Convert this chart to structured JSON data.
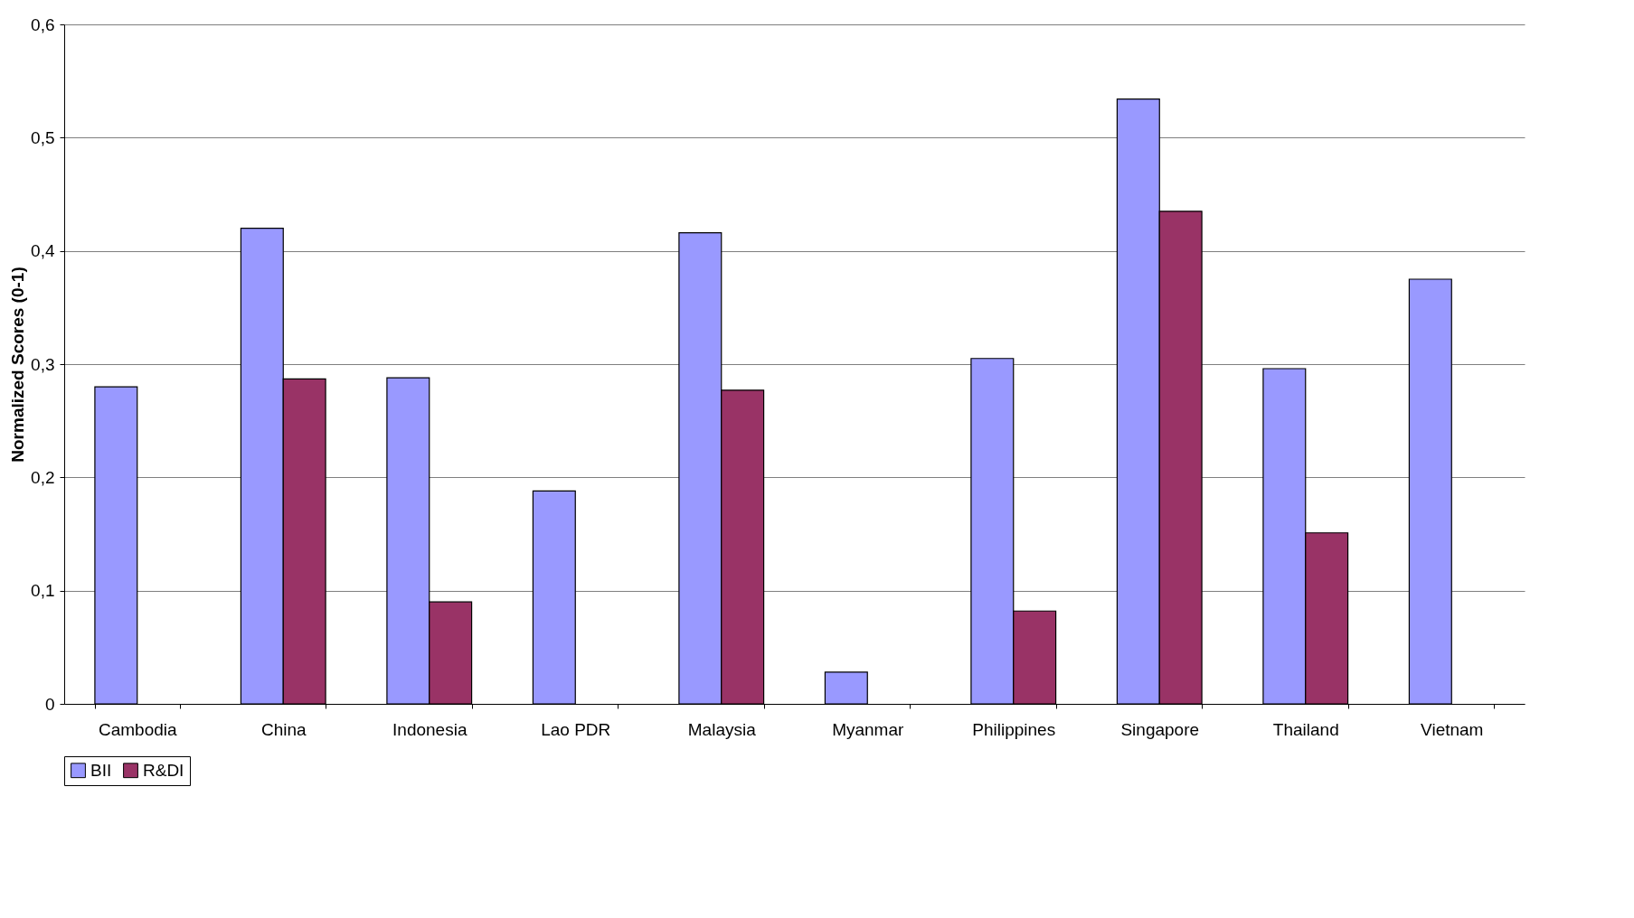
{
  "chart_data": {
    "type": "bar",
    "ylabel": "Normalized Scores (0-1)",
    "categories": [
      "Cambodia",
      "China",
      "Indonesia",
      "Lao PDR",
      "Malaysia",
      "Myanmar",
      "Philippines",
      "Singapore",
      "Thailand",
      "Vietnam"
    ],
    "series": [
      {
        "name": "BII",
        "color": "#9999ff",
        "values": [
          0.28,
          0.42,
          0.288,
          0.188,
          0.416,
          0.028,
          0.305,
          0.534,
          0.296,
          0.375
        ]
      },
      {
        "name": "R&DI",
        "color": "#993366",
        "values": [
          null,
          0.287,
          0.09,
          null,
          0.277,
          null,
          0.082,
          0.435,
          0.151,
          null
        ]
      }
    ],
    "ylim": [
      0,
      0.6
    ],
    "yticks": [
      0,
      {
        "value": 0.1,
        "label": "0,1"
      },
      {
        "value": 0.2,
        "label": "0,2"
      },
      {
        "value": 0.3,
        "label": "0,3"
      },
      {
        "value": 0.4,
        "label": "0,4"
      },
      {
        "value": 0.5,
        "label": "0,5"
      },
      {
        "value": 0.6,
        "label": "0,6"
      }
    ],
    "grid": "y",
    "legend": "bottom"
  }
}
